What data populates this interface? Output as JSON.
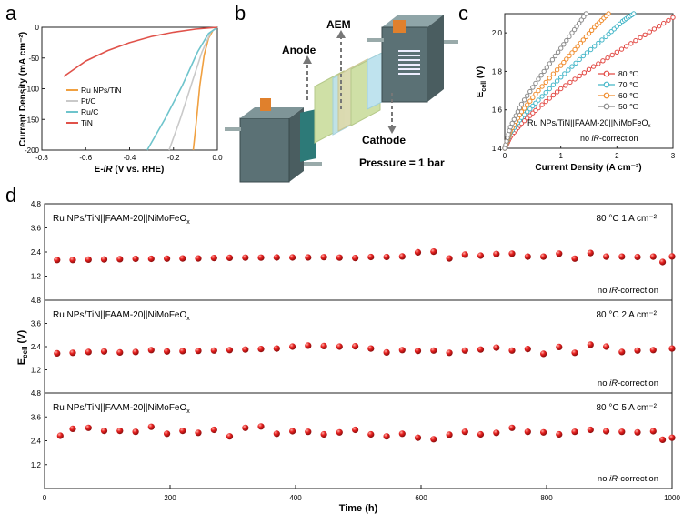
{
  "panel_labels": {
    "a": "a",
    "b": "b",
    "c": "c",
    "d": "d"
  },
  "colors": {
    "ru_tin": "#f0a040",
    "pt_c": "#c9c9c9",
    "ru_c": "#6ec4cc",
    "tin": "#e0524a",
    "c80": "#e24a45",
    "c70": "#44b6c8",
    "c60": "#f08c2c",
    "c50": "#8a8a8a",
    "stability": "#e8201f"
  },
  "panel_a": {
    "ylabel": "Current Density (mA cm⁻²)",
    "xlabel_main": "E-",
    "xlabel_ir": "iR",
    "xlabel_rest": " (V vs. RHE)",
    "xticks": [
      "-0.8",
      "-0.6",
      "-0.4",
      "-0.2",
      "0.0"
    ],
    "yticks": [
      "0",
      "-50",
      "-100",
      "-150",
      "-200"
    ],
    "legend": [
      "Ru NPs/TiN",
      "Pt/C",
      "Ru/C",
      "TiN"
    ]
  },
  "panel_b": {
    "anode": "Anode",
    "aem": "AEM",
    "cathode": "Cathode",
    "pressure": "Pressure = 1 bar"
  },
  "panel_c": {
    "ylabel_main": "E",
    "ylabel_sub": "cell",
    "ylabel_unit": " (V)",
    "xlabel": "Current Density (A cm⁻²)",
    "xticks": [
      "0",
      "1",
      "2",
      "3"
    ],
    "yticks": [
      "1.4",
      "1.6",
      "1.8",
      "2.0"
    ],
    "legend": [
      "80 ℃",
      "70 ℃",
      "60 ℃",
      "50 ℃"
    ],
    "system_main": "Ru NPs/TiN||FAAM-20||NiMoFeO",
    "system_sub": "x",
    "note_pre": "no ",
    "note_ir": "iR",
    "note_post": "-correction"
  },
  "panel_d": {
    "ylabel_main": "E",
    "ylabel_sub": "cell",
    "ylabel_unit": " (V)",
    "xlabel": "Time (h)",
    "xticks": [
      "0",
      "200",
      "400",
      "600",
      "800",
      "1000"
    ],
    "yticks": [
      "4.8",
      "3.6",
      "2.4",
      "1.2"
    ],
    "system_main": "Ru NPs/TiN||FAAM-20||NiMoFeO",
    "system_sub": "x",
    "note_pre": "no ",
    "note_ir": "iR",
    "note_post": "-correction",
    "conditions": [
      "80 °C  1 A cm⁻²",
      "80 °C  2 A cm⁻²",
      "80 °C  5 A cm⁻²"
    ]
  },
  "chart_data": [
    {
      "type": "line",
      "panel": "a",
      "xlabel": "E-iR (V vs. RHE)",
      "ylabel": "Current Density (mA cm⁻²)",
      "xlim": [
        -0.8,
        0.0
      ],
      "ylim": [
        -200,
        0
      ],
      "series": [
        {
          "name": "Ru NPs/TiN",
          "x": [
            0.0,
            -0.02,
            -0.04,
            -0.06,
            -0.08,
            -0.095,
            -0.11
          ],
          "y": [
            0,
            -5,
            -18,
            -45,
            -95,
            -150,
            -200
          ]
        },
        {
          "name": "Pt/C",
          "x": [
            0.0,
            -0.03,
            -0.07,
            -0.12,
            -0.17,
            -0.22
          ],
          "y": [
            0,
            -8,
            -40,
            -95,
            -150,
            -200
          ]
        },
        {
          "name": "Ru/C",
          "x": [
            0.0,
            -0.04,
            -0.09,
            -0.16,
            -0.24,
            -0.32
          ],
          "y": [
            0,
            -10,
            -40,
            -95,
            -150,
            -200
          ]
        },
        {
          "name": "TiN",
          "x": [
            0.0,
            -0.1,
            -0.2,
            -0.3,
            -0.4,
            -0.5,
            -0.6,
            -0.7
          ],
          "y": [
            0,
            -3,
            -8,
            -15,
            -25,
            -38,
            -55,
            -80
          ]
        }
      ]
    },
    {
      "type": "line",
      "panel": "c",
      "xlabel": "Current Density (A cm⁻²)",
      "ylabel": "Ecell (V)",
      "xlim": [
        0,
        3
      ],
      "ylim": [
        1.4,
        2.1
      ],
      "series": [
        {
          "name": "80 ℃",
          "x": [
            0.0,
            0.1,
            0.3,
            0.6,
            1.0,
            1.5,
            2.0,
            2.5,
            3.0
          ],
          "y": [
            1.4,
            1.46,
            1.53,
            1.61,
            1.71,
            1.81,
            1.9,
            1.99,
            2.08
          ]
        },
        {
          "name": "70 ℃",
          "x": [
            0.0,
            0.1,
            0.3,
            0.6,
            1.0,
            1.4,
            1.8,
            2.1,
            2.3
          ],
          "y": [
            1.4,
            1.48,
            1.56,
            1.65,
            1.77,
            1.88,
            1.98,
            2.06,
            2.1
          ]
        },
        {
          "name": "60 ℃",
          "x": [
            0.0,
            0.1,
            0.3,
            0.6,
            1.0,
            1.3,
            1.6,
            1.85
          ],
          "y": [
            1.4,
            1.49,
            1.59,
            1.7,
            1.83,
            1.93,
            2.03,
            2.1
          ]
        },
        {
          "name": "50 ℃",
          "x": [
            0.0,
            0.1,
            0.3,
            0.6,
            0.9,
            1.2,
            1.45
          ],
          "y": [
            1.4,
            1.51,
            1.63,
            1.76,
            1.88,
            2.0,
            2.1
          ]
        }
      ]
    },
    {
      "type": "scatter",
      "panel": "d",
      "xlabel": "Time (h)",
      "ylabel": "Ecell (V)",
      "xlim": [
        0,
        1000
      ],
      "ylim": [
        0,
        4.8
      ],
      "series": [
        {
          "name": "80 °C  1 A cm⁻²",
          "x": [
            20,
            45,
            70,
            95,
            120,
            145,
            170,
            195,
            220,
            245,
            270,
            295,
            320,
            345,
            370,
            395,
            420,
            445,
            470,
            495,
            520,
            545,
            570,
            595,
            620,
            645,
            670,
            695,
            720,
            745,
            770,
            795,
            820,
            845,
            870,
            895,
            920,
            945,
            970,
            985,
            1000
          ],
          "y": [
            2.0,
            2.0,
            2.02,
            2.03,
            2.04,
            2.06,
            2.06,
            2.07,
            2.08,
            2.08,
            2.1,
            2.11,
            2.12,
            2.12,
            2.13,
            2.13,
            2.13,
            2.14,
            2.12,
            2.1,
            2.15,
            2.15,
            2.18,
            2.38,
            2.42,
            2.08,
            2.27,
            2.22,
            2.3,
            2.32,
            2.17,
            2.17,
            2.32,
            2.07,
            2.35,
            2.17,
            2.17,
            2.15,
            2.17,
            1.9,
            2.18
          ]
        },
        {
          "name": "80 °C  2 A cm⁻²",
          "x": [
            20,
            45,
            70,
            95,
            120,
            145,
            170,
            195,
            220,
            245,
            270,
            295,
            320,
            345,
            370,
            395,
            420,
            445,
            470,
            495,
            520,
            545,
            570,
            595,
            620,
            645,
            670,
            695,
            720,
            745,
            770,
            795,
            820,
            845,
            870,
            895,
            920,
            945,
            970,
            1000
          ],
          "y": [
            2.05,
            2.08,
            2.12,
            2.15,
            2.1,
            2.12,
            2.22,
            2.15,
            2.17,
            2.18,
            2.2,
            2.22,
            2.25,
            2.28,
            2.3,
            2.4,
            2.45,
            2.43,
            2.4,
            2.42,
            2.3,
            2.1,
            2.22,
            2.18,
            2.2,
            2.08,
            2.2,
            2.25,
            2.35,
            2.2,
            2.28,
            2.03,
            2.38,
            2.08,
            2.5,
            2.4,
            2.12,
            2.2,
            2.22,
            2.3
          ]
        },
        {
          "name": "80 °C  5 A cm⁻²",
          "x": [
            25,
            45,
            70,
            95,
            120,
            145,
            170,
            195,
            220,
            245,
            270,
            295,
            320,
            345,
            370,
            395,
            420,
            445,
            470,
            495,
            520,
            545,
            570,
            595,
            620,
            645,
            670,
            695,
            720,
            745,
            770,
            795,
            820,
            845,
            870,
            895,
            920,
            945,
            970,
            985,
            1000
          ],
          "y": [
            2.65,
            3.0,
            3.05,
            2.9,
            2.9,
            2.85,
            3.1,
            2.75,
            2.9,
            2.8,
            2.95,
            2.62,
            3.05,
            3.12,
            2.75,
            2.88,
            2.85,
            2.72,
            2.82,
            2.95,
            2.72,
            2.62,
            2.75,
            2.55,
            2.48,
            2.7,
            2.85,
            2.72,
            2.8,
            3.05,
            2.85,
            2.82,
            2.72,
            2.85,
            2.95,
            2.88,
            2.85,
            2.82,
            2.88,
            2.45,
            2.55
          ]
        }
      ]
    }
  ]
}
